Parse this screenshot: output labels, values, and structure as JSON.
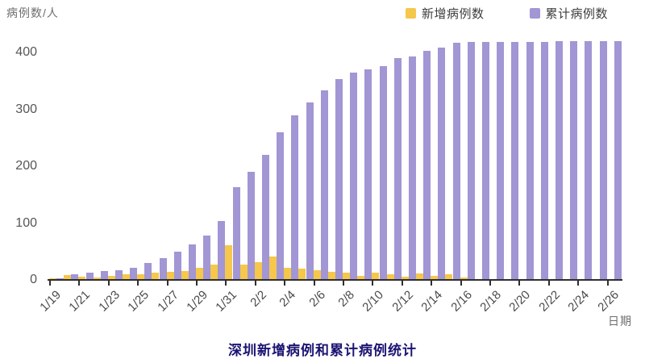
{
  "unit_label": "病例数/人",
  "x_axis_label": "日期",
  "title": "深圳新增病例和累计病例统计",
  "colors": {
    "new_cases": "#F5C74B",
    "cumulative_cases": "#A296D4",
    "axis": "#2e2e2e",
    "title_text": "#1b1472"
  },
  "legend": [
    {
      "label": "新增病例数",
      "color": "#F5C74B"
    },
    {
      "label": "累计病例数",
      "color": "#A296D4"
    }
  ],
  "chart_data": {
    "type": "bar",
    "title": "深圳新增病例和累计病例统计",
    "xlabel": "日期",
    "ylabel": "病例数/人",
    "x": [
      "1/19",
      "1/20",
      "1/21",
      "1/22",
      "1/23",
      "1/24",
      "1/25",
      "1/26",
      "1/27",
      "1/28",
      "1/29",
      "1/30",
      "1/31",
      "2/1",
      "2/2",
      "2/3",
      "2/4",
      "2/5",
      "2/6",
      "2/7",
      "2/8",
      "2/9",
      "2/10",
      "2/11",
      "2/12",
      "2/13",
      "2/14",
      "2/15",
      "2/16",
      "2/17",
      "2/18",
      "2/19",
      "2/20",
      "2/21",
      "2/22",
      "2/23",
      "2/24",
      "2/25",
      "2/26"
    ],
    "x_tick_labels": [
      "1/19",
      "1/21",
      "1/23",
      "1/25",
      "1/27",
      "1/29",
      "1/31",
      "2/2",
      "2/4",
      "2/6",
      "2/8",
      "2/10",
      "2/12",
      "2/14",
      "2/16",
      "2/18",
      "2/20",
      "2/22",
      "2/24",
      "2/26"
    ],
    "series": [
      {
        "name": "新增病例数",
        "color": "#F5C74B",
        "values": [
          1,
          7,
          4,
          3,
          5,
          8,
          9,
          11,
          13,
          14,
          20,
          25,
          60,
          26,
          30,
          40,
          20,
          18,
          15,
          13,
          11,
          5,
          12,
          8,
          4,
          10,
          5,
          9,
          3,
          0,
          0,
          0,
          0,
          0,
          0,
          0,
          0,
          0,
          0
        ]
      },
      {
        "name": "累计病例数",
        "color": "#A296D4",
        "values": [
          1,
          8,
          12,
          14,
          15,
          20,
          28,
          37,
          48,
          61,
          77,
          102,
          162,
          188,
          218,
          258,
          288,
          310,
          332,
          352,
          363,
          369,
          375,
          388,
          392,
          401,
          407,
          415,
          417,
          417,
          417,
          417,
          417,
          417,
          418,
          418,
          418,
          418,
          418
        ]
      }
    ],
    "yticks": [
      0,
      100,
      200,
      300,
      400
    ],
    "ylim": [
      0,
      425
    ],
    "grid": false,
    "legend_position": "top-right"
  }
}
